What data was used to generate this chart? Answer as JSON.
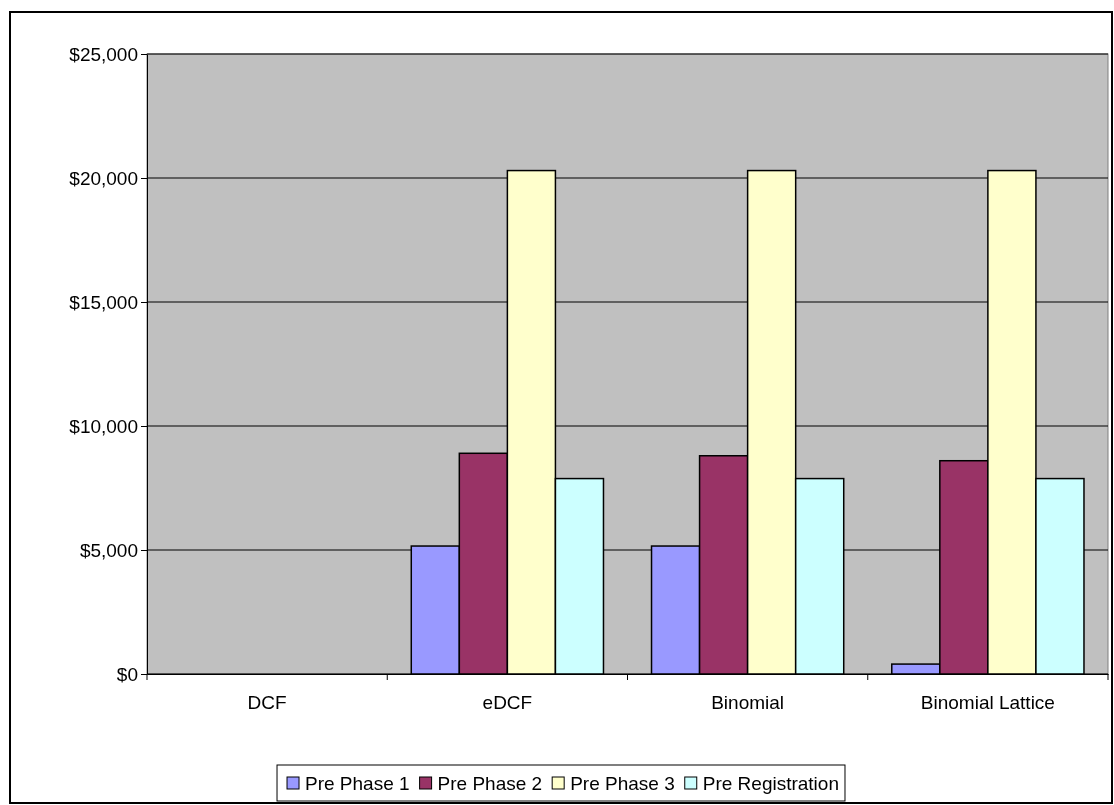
{
  "chart_data": {
    "type": "bar",
    "categories": [
      "DCF",
      "eDCF",
      "Binomial",
      "Binomial Lattice"
    ],
    "series": [
      {
        "name": "Pre Phase 1",
        "color": "#9999ff",
        "values": [
          0,
          5160,
          5160,
          400
        ]
      },
      {
        "name": "Pre Phase 2",
        "color": "#993366",
        "values": [
          0,
          8900,
          8800,
          8600
        ]
      },
      {
        "name": "Pre Phase 3",
        "color": "#ffffcc",
        "values": [
          0,
          20300,
          20300,
          20300
        ]
      },
      {
        "name": "Pre Registration",
        "color": "#ccffff",
        "values": [
          0,
          7880,
          7880,
          7880
        ]
      }
    ],
    "ylim": [
      0,
      25000
    ],
    "yticks": [
      {
        "value": 0,
        "label": "$0"
      },
      {
        "value": 5000,
        "label": "$5,000"
      },
      {
        "value": 10000,
        "label": "$10,000"
      },
      {
        "value": 15000,
        "label": "$15,000"
      },
      {
        "value": 20000,
        "label": "$20,000"
      },
      {
        "value": 25000,
        "label": "$25,000"
      }
    ],
    "grid": "y",
    "legend": "bottom"
  }
}
